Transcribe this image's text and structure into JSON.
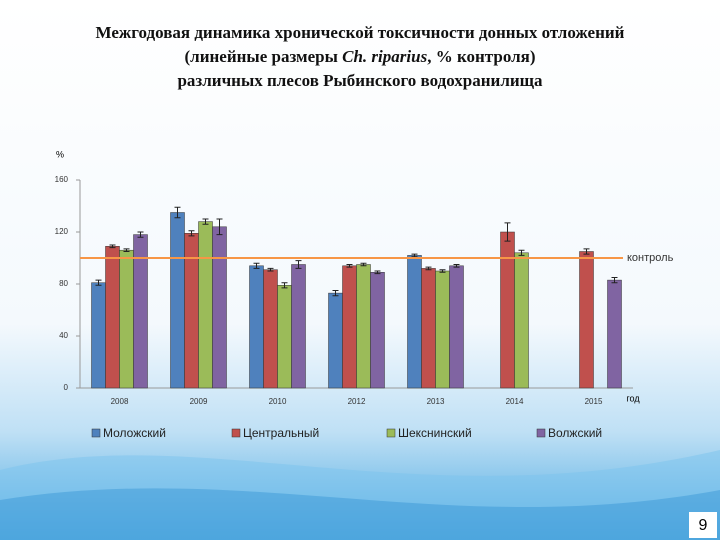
{
  "chart_data": {
    "type": "bar",
    "title": [
      "Межгодовая динамика хронической токсичности донных отложений",
      [
        "(линейные размеры ",
        "Ch. riparius",
        ", % контроля)"
      ],
      "различных плесов Рыбинского водохранилища"
    ],
    "y_label": "%",
    "x_label": "год",
    "categories": [
      "2008",
      "2009",
      "2010",
      "2012",
      "2013",
      "2014",
      "2015"
    ],
    "series": [
      {
        "name": "Моложский",
        "color": "#4f81bd",
        "values": [
          81,
          135,
          94,
          73,
          102,
          null,
          null
        ],
        "errors": [
          2,
          4,
          2,
          2,
          1,
          null,
          null
        ]
      },
      {
        "name": "Центральный",
        "color": "#c0504d",
        "values": [
          109,
          119,
          91,
          94,
          92,
          120,
          105
        ],
        "errors": [
          1,
          2,
          1,
          1,
          1,
          7,
          2
        ]
      },
      {
        "name": "Шекснинский",
        "color": "#9bbb59",
        "values": [
          106,
          128,
          79,
          95,
          90,
          104,
          null
        ],
        "errors": [
          1,
          2,
          2,
          1,
          1,
          2,
          null
        ]
      },
      {
        "name": "Волжский",
        "color": "#8064a2",
        "values": [
          118,
          124,
          95,
          89,
          94,
          null,
          83
        ],
        "errors": [
          2,
          6,
          3,
          1,
          1,
          null,
          2
        ]
      }
    ],
    "reference_line": {
      "value": 100,
      "label": "контроль",
      "color": "#f79646"
    },
    "ylim": [
      0,
      160
    ],
    "yticks": [
      0,
      40,
      80,
      120,
      160
    ]
  },
  "page_number": "9"
}
